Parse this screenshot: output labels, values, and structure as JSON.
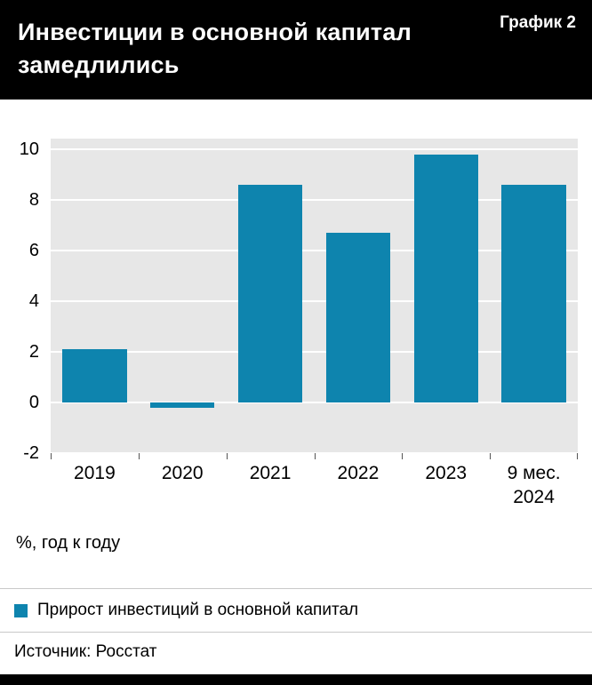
{
  "header": {
    "title_line1": "Инвестиции в основной капитал",
    "title_line2": "замедлились",
    "chart_label": "График 2"
  },
  "chart_data": {
    "type": "bar",
    "categories": [
      "2019",
      "2020",
      "2021",
      "2022",
      "2023",
      "9 мес.\n2024"
    ],
    "values": [
      2.1,
      -0.2,
      8.6,
      6.7,
      9.8,
      8.6
    ],
    "title": "Инвестиции в основной капитал замедлились",
    "xlabel": "",
    "ylabel": "%, год к году",
    "ylim": [
      -2,
      10
    ],
    "yticks": [
      10,
      8,
      6,
      4,
      2,
      0,
      -2
    ],
    "bar_color": "#0e84ae",
    "plot_bg": "#e7e7e7",
    "grid": true,
    "legend_position": "bottom"
  },
  "axis_note": "%, год к году",
  "legend": {
    "items": [
      {
        "label": "Прирост инвестиций в основной капитал",
        "color": "#0e84ae"
      }
    ]
  },
  "source": "Источник: Росстат"
}
